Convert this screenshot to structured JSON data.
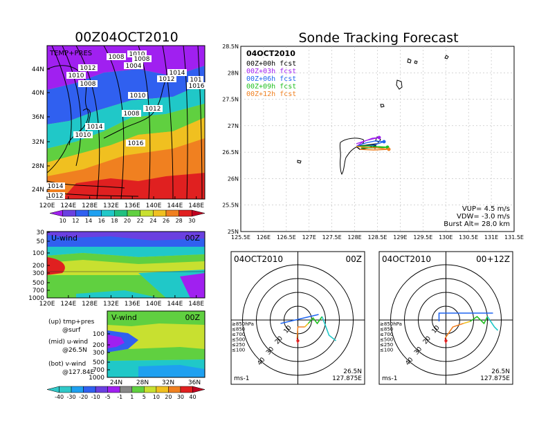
{
  "main_title": "Sonde Tracking Forecast",
  "left_title": "00Z04OCT2010",
  "temp_panel": {
    "label": "TEMP+PRES",
    "lat_ticks": [
      "44N",
      "40N",
      "36N",
      "32N",
      "28N",
      "24N"
    ],
    "lon_ticks": [
      "120E",
      "124E",
      "128E",
      "132E",
      "136E",
      "140E",
      "144E",
      "148E"
    ],
    "isobar_labels": [
      "1008",
      "1010",
      "1008",
      "1012",
      "1004",
      "1010",
      "1014",
      "1012",
      "101",
      "1016",
      "1008",
      "1010",
      "1012",
      "1008",
      "1014",
      "1010",
      "1016",
      "1014",
      "1012"
    ],
    "colorbar_labels": [
      "10",
      "12",
      "14",
      "16",
      "18",
      "20",
      "22",
      "24",
      "26",
      "28",
      "30"
    ],
    "colorbar_colors": [
      "#a020f0",
      "#6a40e0",
      "#3060f0",
      "#1ea0f0",
      "#20c8c8",
      "#20c080",
      "#60d040",
      "#c8e030",
      "#f0c020",
      "#f08020",
      "#e02020",
      "#c00020"
    ]
  },
  "u_panel": {
    "label": "U-wind",
    "time": "00Z",
    "y_ticks": [
      "30",
      "50",
      "100",
      "200",
      "300",
      "500",
      "700",
      "1000"
    ],
    "x_ticks": [
      "120E",
      "124E",
      "128E",
      "132E",
      "136E",
      "140E",
      "144E",
      "148E"
    ]
  },
  "v_panel": {
    "label": "V-wind",
    "time": "00Z",
    "y_ticks": [
      "100",
      "200",
      "300",
      "500",
      "700",
      "1000"
    ],
    "x_ticks": [
      "24N",
      "28N",
      "32N",
      "36N"
    ]
  },
  "notes": [
    [
      "(up) tmp+pres",
      "@surf"
    ],
    [
      "(mid) u-wind",
      "@26.5N"
    ],
    [
      "(bot) v-wind",
      "@127.84E"
    ]
  ],
  "wind_colorbar": {
    "labels": [
      "-40",
      "-30",
      "-20",
      "-10",
      "-5",
      "-1",
      "1",
      "5",
      "10",
      "20",
      "30",
      "40"
    ],
    "colors": [
      "#30c8c8",
      "#1ea0f0",
      "#3060f0",
      "#6a40e0",
      "#a020f0",
      "#888888",
      "#60d040",
      "#c8e030",
      "#f0c020",
      "#f08020",
      "#e02020",
      "#c00020"
    ]
  },
  "track_map": {
    "date": "04OCT2010",
    "legend": [
      {
        "label": "00Z+00h  fcst",
        "color": "#000000"
      },
      {
        "label": "00Z+03h  fcst",
        "color": "#a020f0"
      },
      {
        "label": "00Z+06h  fcst",
        "color": "#1e64f0"
      },
      {
        "label": "00Z+09h  fcst",
        "color": "#20c020"
      },
      {
        "label": "00Z+12h  fcst",
        "color": "#f08020"
      }
    ],
    "lat_ticks": [
      "28.5N",
      "28N",
      "27.5N",
      "27N",
      "26.5N",
      "26N",
      "25.5N",
      "25N"
    ],
    "lon_ticks": [
      "125.5E",
      "126E",
      "126.5E",
      "127E",
      "127.5E",
      "128E",
      "128.5E",
      "129E",
      "129.5E",
      "130E",
      "130.5E",
      "131E",
      "131.5E"
    ],
    "info": [
      "VUP=  4.5  m/s",
      "VDW= -3.0  m/s",
      "Burst Alt=  28.0  km"
    ]
  },
  "hodographs": [
    {
      "date": "04OCT2010",
      "time": "00Z",
      "unit": "ms-1",
      "loc1": "26.5N",
      "loc2": "127.875E"
    },
    {
      "date": "04OCT2010",
      "time": "00+12Z",
      "unit": "ms-1",
      "loc1": "26.5N",
      "loc2": "127.875E"
    }
  ],
  "hodo_rings": [
    "10",
    "20",
    "30",
    "40"
  ],
  "hodo_legend": [
    {
      "label": "≥850hPa",
      "color": "#e02020"
    },
    {
      "label": "≤850",
      "color": "#f08020"
    },
    {
      "label": "≤700",
      "color": "#f0c020"
    },
    {
      "label": "≤500",
      "color": "#20c020"
    },
    {
      "label": "≤250",
      "color": "#20c8c8"
    },
    {
      "label": "≤100",
      "color": "#1e64f0"
    }
  ]
}
